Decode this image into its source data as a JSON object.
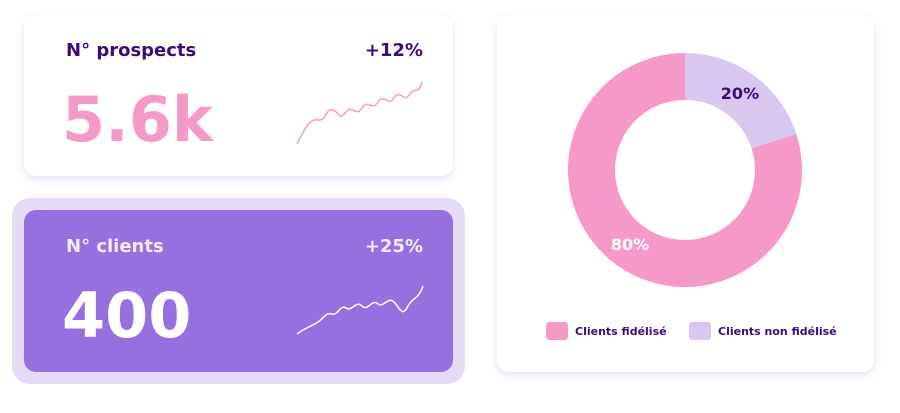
{
  "cards": [
    {
      "title": "N° prospects",
      "change": "+12%",
      "value": "5.6k"
    },
    {
      "title": "N° clients",
      "change": "+25%",
      "value": "400"
    }
  ],
  "chart_data": {
    "type": "pie",
    "donut": true,
    "categories": [
      "Clients fidélisé",
      "Clients non fidélisé"
    ],
    "values": [
      80,
      20
    ],
    "value_labels": [
      "80%",
      "20%"
    ],
    "colors": [
      "#f59ac8",
      "#d9c7f0"
    ]
  }
}
